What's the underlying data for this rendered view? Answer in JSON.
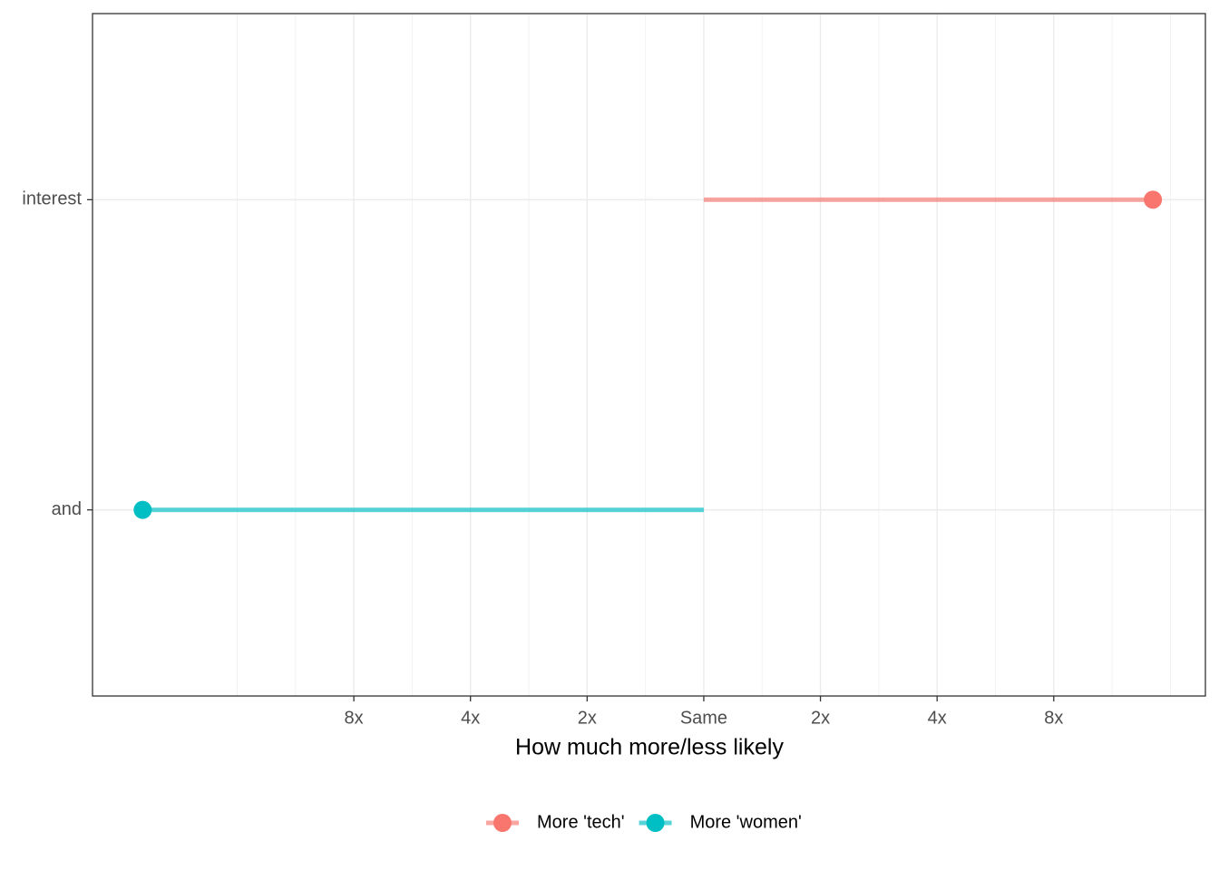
{
  "chart_data": {
    "type": "lollipop",
    "x_label": "How much more/less likely",
    "categories": [
      "and",
      "interest"
    ],
    "series": [
      {
        "name": "More 'tech'",
        "color": "#F8766D",
        "values": [
          null,
          3.85
        ]
      },
      {
        "name": "More 'women'",
        "color": "#00BFC4",
        "values": [
          -4.81,
          null
        ]
      }
    ],
    "xlim": [
      -5.24,
      4.3
    ],
    "xticks": [
      {
        "value": -3,
        "label": "8x"
      },
      {
        "value": -2,
        "label": "4x"
      },
      {
        "value": -1,
        "label": "2x"
      },
      {
        "value": 0,
        "label": "Same"
      },
      {
        "value": 1,
        "label": "2x"
      },
      {
        "value": 2,
        "label": "4x"
      },
      {
        "value": 3,
        "label": "8x"
      }
    ],
    "grid": true,
    "legend_position": "bottom"
  }
}
